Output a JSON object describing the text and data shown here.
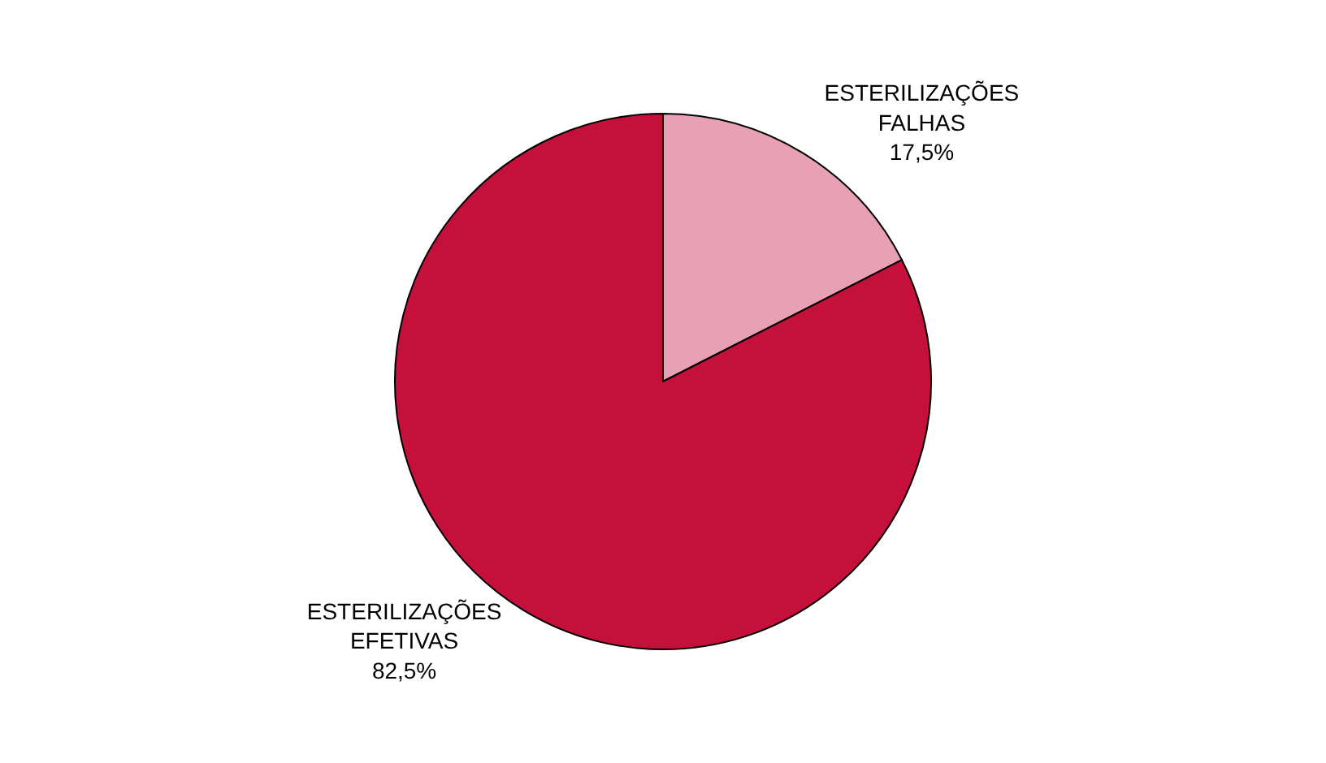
{
  "chart_data": {
    "type": "pie",
    "categories": [
      "ESTERILIZAÇÕES FALHAS",
      "ESTERILIZAÇÕES EFETIVAS"
    ],
    "values": [
      17.5,
      82.5
    ],
    "value_labels": [
      "17,5%",
      "82,5%"
    ],
    "colors": [
      "#e8a0b4",
      "#c4103a"
    ],
    "legend": false
  }
}
